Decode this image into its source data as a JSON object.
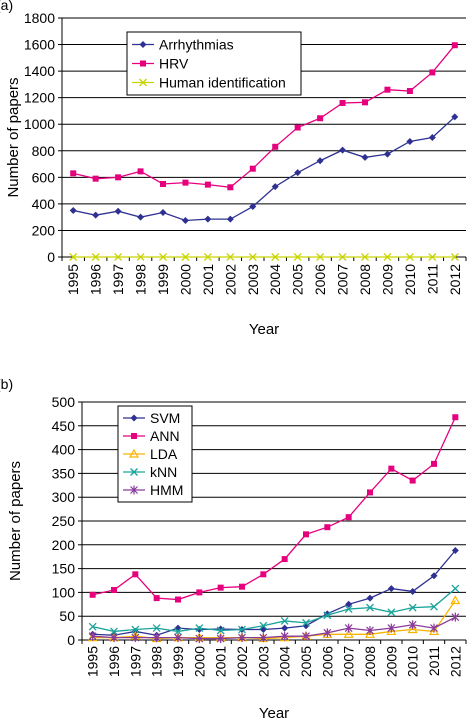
{
  "panels": [
    {
      "label": "(a)"
    },
    {
      "label": "(b)"
    }
  ],
  "chart_data": [
    {
      "type": "line",
      "xlabel": "Year",
      "ylabel": "Number of papers",
      "ylim": [
        0,
        1800
      ],
      "yticks": [
        0,
        200,
        400,
        600,
        800,
        1000,
        1200,
        1400,
        1600,
        1800
      ],
      "categories": [
        "1995",
        "1996",
        "1997",
        "1998",
        "1999",
        "2000",
        "2001",
        "2002",
        "2003",
        "2004",
        "2005",
        "2006",
        "2007",
        "2008",
        "2009",
        "2010",
        "2011",
        "2012"
      ],
      "grid": "horizontal",
      "legend_position": "top-left",
      "series": [
        {
          "name": "Arrhythmias",
          "color": "#2e3192",
          "marker": "diamond",
          "values": [
            350,
            315,
            345,
            300,
            335,
            275,
            285,
            285,
            380,
            530,
            635,
            725,
            805,
            750,
            775,
            870,
            900,
            1055
          ]
        },
        {
          "name": "HRV",
          "color": "#e6007e",
          "marker": "square",
          "values": [
            630,
            590,
            600,
            645,
            550,
            560,
            545,
            525,
            665,
            830,
            975,
            1045,
            1160,
            1165,
            1260,
            1250,
            1390,
            1595
          ]
        },
        {
          "name": "Human identification",
          "color": "#c8d400",
          "marker": "x",
          "values": [
            0,
            0,
            0,
            0,
            0,
            0,
            0,
            0,
            0,
            0,
            0,
            0,
            0,
            0,
            0,
            0,
            0,
            0
          ]
        }
      ]
    },
    {
      "type": "line",
      "xlabel": "Year",
      "ylabel": "Number of papers",
      "ylim": [
        0,
        500
      ],
      "yticks": [
        0,
        50,
        100,
        150,
        200,
        250,
        300,
        350,
        400,
        450,
        500
      ],
      "categories": [
        "1995",
        "1996",
        "1997",
        "1998",
        "1999",
        "2000",
        "2001",
        "2002",
        "2003",
        "2004",
        "2005",
        "2006",
        "2007",
        "2008",
        "2009",
        "2010",
        "2011",
        "2012"
      ],
      "grid": "horizontal",
      "legend_position": "top-left",
      "series": [
        {
          "name": "SVM",
          "color": "#2e3192",
          "marker": "diamond",
          "values": [
            12,
            10,
            18,
            10,
            25,
            22,
            23,
            22,
            22,
            25,
            30,
            55,
            75,
            88,
            108,
            102,
            135,
            188
          ]
        },
        {
          "name": "ANN",
          "color": "#e6007e",
          "marker": "square",
          "values": [
            95,
            105,
            138,
            88,
            85,
            100,
            110,
            112,
            138,
            170,
            222,
            237,
            258,
            310,
            360,
            335,
            370,
            468
          ]
        },
        {
          "name": "LDA",
          "color": "#f7b500",
          "marker": "triangle",
          "values": [
            5,
            5,
            8,
            3,
            5,
            5,
            5,
            5,
            3,
            5,
            8,
            12,
            12,
            12,
            18,
            22,
            18,
            83
          ]
        },
        {
          "name": "kNN",
          "color": "#1aa39b",
          "marker": "x",
          "values": [
            28,
            18,
            22,
            25,
            18,
            25,
            20,
            22,
            30,
            40,
            36,
            52,
            65,
            68,
            58,
            68,
            70,
            108
          ]
        },
        {
          "name": "HMM",
          "color": "#8a3a9b",
          "marker": "star",
          "values": [
            8,
            5,
            5,
            5,
            5,
            3,
            3,
            5,
            5,
            8,
            8,
            15,
            25,
            20,
            25,
            32,
            25,
            48
          ]
        }
      ]
    }
  ]
}
